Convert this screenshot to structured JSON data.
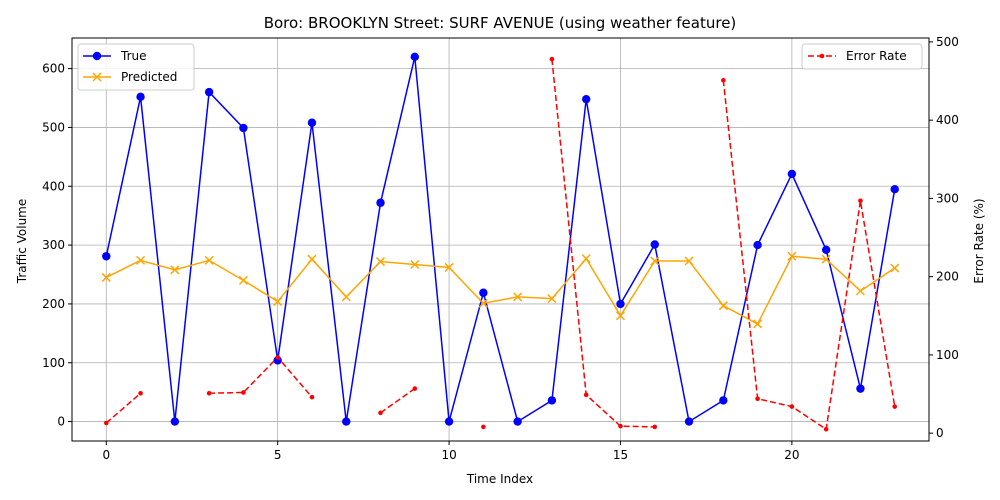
{
  "chart_data": {
    "type": "line",
    "title": "Boro: BROOKLYN Street: SURF AVENUE (using weather feature)",
    "xlabel": "Time Index",
    "ylabel_left": "Traffic Volume",
    "ylabel_right": "Error Rate (%)",
    "xlim": [
      -1,
      24
    ],
    "ylim_left": [
      -33,
      652
    ],
    "ylim_right": [
      -10,
      505
    ],
    "x_ticks": [
      0,
      5,
      10,
      15,
      20
    ],
    "y_ticks_left": [
      0,
      100,
      200,
      300,
      400,
      500,
      600
    ],
    "y_ticks_right": [
      0,
      100,
      200,
      300,
      400,
      500
    ],
    "grid": true,
    "legend_left_position": "upper-left",
    "legend_right_position": "upper-right",
    "x": [
      0,
      1,
      2,
      3,
      4,
      5,
      6,
      7,
      8,
      9,
      10,
      11,
      12,
      13,
      14,
      15,
      16,
      17,
      18,
      19,
      20,
      21,
      22,
      23
    ],
    "series": [
      {
        "name": "True",
        "axis": "left",
        "color": "#0000ff",
        "marker": "circle",
        "linestyle": "solid",
        "values": [
          281,
          552,
          0,
          560,
          499,
          104,
          508,
          0,
          372,
          620,
          0,
          219,
          0,
          36,
          548,
          200,
          301,
          0,
          36,
          300,
          421,
          292,
          56,
          395
        ]
      },
      {
        "name": "Predicted",
        "axis": "left",
        "color": "#ffa500",
        "marker": "x",
        "linestyle": "solid",
        "values": [
          245,
          274,
          258,
          274,
          240,
          204,
          276,
          212,
          272,
          267,
          262,
          201,
          212,
          209,
          277,
          180,
          273,
          273,
          197,
          166,
          281,
          276,
          222,
          261
        ]
      },
      {
        "name": "Error Rate",
        "axis": "right",
        "color": "#ff0000",
        "marker": "dot",
        "linestyle": "dashed",
        "values": [
          13,
          51,
          null,
          51,
          52,
          97,
          46,
          null,
          26,
          57,
          null,
          8,
          null,
          478,
          49,
          9,
          8,
          null,
          451,
          44,
          34,
          5,
          297,
          34
        ]
      }
    ]
  }
}
